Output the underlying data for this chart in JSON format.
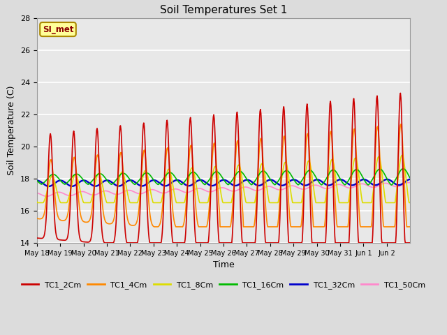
{
  "title": "Soil Temperatures Set 1",
  "xlabel": "Time",
  "ylabel": "Soil Temperature (C)",
  "ylim": [
    14,
    28
  ],
  "yticks": [
    14,
    16,
    18,
    20,
    22,
    24,
    26,
    28
  ],
  "annotation_text": "SI_met",
  "annotation_box_color": "#FFFF99",
  "annotation_text_color": "#8B0000",
  "series_colors": [
    "#CC0000",
    "#FF8800",
    "#DDDD00",
    "#00BB00",
    "#0000CC",
    "#FF88CC"
  ],
  "series_labels": [
    "TC1_2Cm",
    "TC1_4Cm",
    "TC1_8Cm",
    "TC1_16Cm",
    "TC1_32Cm",
    "TC1_50Cm"
  ],
  "background_color": "#DCDCDC",
  "plot_bg_color": "#E8E8E8",
  "grid_color": "#FFFFFF",
  "x_tick_labels": [
    "May 18",
    "May 19",
    "May 20",
    "May 21",
    "May 22",
    "May 23",
    "May 24",
    "May 25",
    "May 26",
    "May 27",
    "May 28",
    "May 29",
    "May 30",
    "May 31",
    "Jun 1",
    "Jun 2"
  ],
  "line_width": 1.2,
  "figwidth": 6.4,
  "figheight": 4.8,
  "dpi": 100
}
